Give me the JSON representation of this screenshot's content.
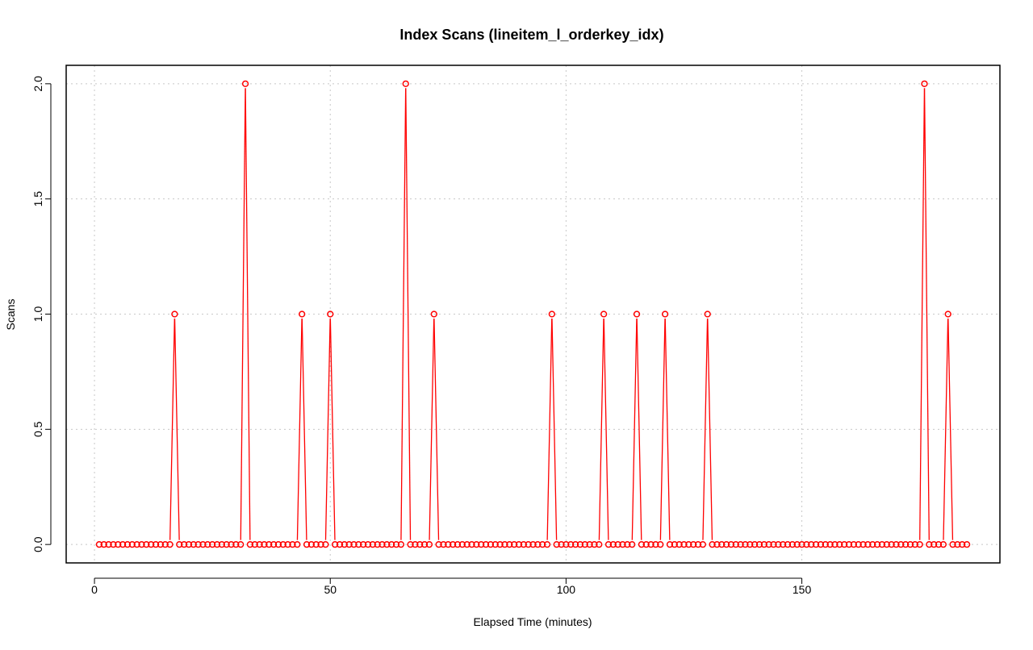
{
  "chart_data": {
    "type": "line",
    "title": "Index Scans (lineitem_l_orderkey_idx)",
    "xlabel": "Elapsed Time (minutes)",
    "ylabel": "Scans",
    "xlim": [
      -6,
      192
    ],
    "ylim": [
      -0.08,
      2.08
    ],
    "x_ticks": [
      0,
      50,
      100,
      150
    ],
    "x_tick_labels": [
      "0",
      "50",
      "100",
      "150"
    ],
    "y_ticks": [
      0.0,
      0.5,
      1.0,
      1.5,
      2.0
    ],
    "y_tick_labels": [
      "0.0",
      "0.5",
      "1.0",
      "1.5",
      "2.0"
    ],
    "grid": true,
    "series_color": "#ff0000",
    "grid_color": "#c8c8c8",
    "x_start": 1,
    "x_end": 185,
    "spikes": [
      {
        "x": 17,
        "y": 1
      },
      {
        "x": 32,
        "y": 2
      },
      {
        "x": 44,
        "y": 1
      },
      {
        "x": 50,
        "y": 1
      },
      {
        "x": 66,
        "y": 2
      },
      {
        "x": 72,
        "y": 1
      },
      {
        "x": 97,
        "y": 1
      },
      {
        "x": 108,
        "y": 1
      },
      {
        "x": 115,
        "y": 1
      },
      {
        "x": 121,
        "y": 1
      },
      {
        "x": 130,
        "y": 1
      },
      {
        "x": 176,
        "y": 2
      },
      {
        "x": 181,
        "y": 1
      }
    ]
  }
}
